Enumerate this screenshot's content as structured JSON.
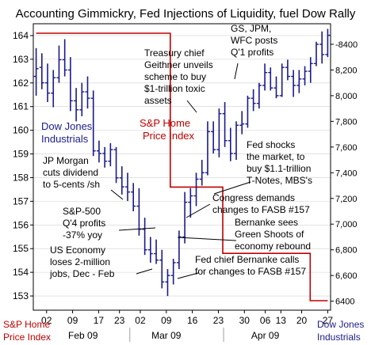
{
  "chart_data": {
    "type": "line",
    "title": "Accounting Gimmickry, Fed Injections of Liquidity, fuel Dow Rally",
    "x_ticks": [
      "02",
      "09",
      "17",
      "23",
      "02",
      "09",
      "16",
      "23",
      "30",
      "06",
      "13",
      "20",
      "27"
    ],
    "month_labels": [
      "Feb 09",
      "Mar 09",
      "Apr 09"
    ],
    "left_axis": {
      "label": [
        "S&P Home",
        "Price Index"
      ],
      "ticks": [
        153,
        154,
        155,
        156,
        157,
        158,
        159,
        160,
        161,
        162,
        163,
        164
      ],
      "range": [
        152.4,
        164.5
      ]
    },
    "right_axis": {
      "label": [
        "Dow Jones",
        "Industrials"
      ],
      "ticks": [
        6400,
        6600,
        6800,
        7000,
        7200,
        7400,
        7600,
        7800,
        8000,
        8200,
        8400
      ],
      "tick_labels": [
        "6400",
        "6,600",
        "6,800",
        "7,000",
        "7,200",
        "7,400",
        "7,600",
        "7,800",
        "8,000",
        "8,200",
        "-8400"
      ],
      "range": [
        6330,
        8560
      ]
    },
    "series": [
      {
        "name": "Dow Jones Industrials",
        "type": "ohlc",
        "color": "#1a1a8c",
        "bars": [
          [
            8150,
            8370,
            8000,
            8210
          ],
          [
            8220,
            8330,
            8050,
            8100
          ],
          [
            8100,
            8250,
            7950,
            8020
          ],
          [
            8020,
            8200,
            7910,
            8140
          ],
          [
            8140,
            8390,
            8100,
            8280
          ],
          [
            8280,
            8440,
            8150,
            8200
          ],
          [
            8200,
            8300,
            7880,
            7960
          ],
          [
            7960,
            8060,
            7800,
            7890
          ],
          [
            7890,
            8100,
            7840,
            8030
          ],
          [
            8030,
            8150,
            7900,
            7980
          ],
          [
            7980,
            8040,
            7530,
            7570
          ],
          [
            7570,
            7650,
            7480,
            7550
          ],
          [
            7550,
            7600,
            7440,
            7490
          ],
          [
            7490,
            7630,
            7450,
            7580
          ],
          [
            7580,
            7600,
            7320,
            7360
          ],
          [
            7360,
            7450,
            7230,
            7290
          ],
          [
            7290,
            7400,
            7180,
            7250
          ],
          [
            7250,
            7320,
            7100,
            7140
          ],
          [
            7140,
            7280,
            6910,
            6960
          ],
          [
            6960,
            7050,
            6760,
            6800
          ],
          [
            6800,
            6900,
            6700,
            6770
          ],
          [
            6770,
            6880,
            6690,
            6720
          ],
          [
            6720,
            6800,
            6500,
            6550
          ],
          [
            6550,
            6650,
            6440,
            6600
          ],
          [
            6600,
            6730,
            6530,
            6700
          ],
          [
            6700,
            6950,
            6650,
            6900
          ],
          [
            6900,
            7250,
            6850,
            7170
          ],
          [
            7170,
            7280,
            7050,
            7220
          ],
          [
            7220,
            7400,
            7140,
            7350
          ],
          [
            7350,
            7500,
            7300,
            7400
          ],
          [
            7400,
            7800,
            7380,
            7720
          ],
          [
            7720,
            7800,
            7550,
            7580
          ],
          [
            7580,
            7900,
            7520,
            7860
          ],
          [
            7860,
            7950,
            7600,
            7650
          ],
          [
            7650,
            7750,
            7490,
            7550
          ],
          [
            7550,
            7800,
            7500,
            7770
          ],
          [
            7770,
            7880,
            7700,
            7780
          ],
          [
            7780,
            8000,
            7750,
            7980
          ],
          [
            7980,
            8050,
            7880,
            7940
          ],
          [
            7940,
            8100,
            7900,
            8080
          ],
          [
            8080,
            8250,
            8040,
            8180
          ],
          [
            8180,
            8220,
            8040,
            8060
          ],
          [
            8060,
            8150,
            7980,
            8000
          ],
          [
            8000,
            8250,
            7990,
            8220
          ],
          [
            8220,
            8280,
            8120,
            8150
          ],
          [
            8150,
            8200,
            7990,
            8080
          ],
          [
            8080,
            8200,
            8020,
            8130
          ],
          [
            8130,
            8230,
            8080,
            8190
          ],
          [
            8190,
            8300,
            8100,
            8250
          ],
          [
            8250,
            8420,
            8230,
            8400
          ],
          [
            8400,
            8500,
            8250,
            8320
          ],
          [
            8320,
            8520,
            8300,
            8470
          ]
        ]
      },
      {
        "name": "S&P Home Price Index",
        "type": "step",
        "color": "#c00000",
        "x": [
          0,
          23,
          23,
          32,
          32,
          47,
          47,
          50
        ],
        "values": [
          164.1,
          164.1,
          157.6,
          157.6,
          154.8,
          154.8,
          152.8,
          152.8
        ]
      }
    ]
  },
  "labels": {
    "dow_legend": [
      "Dow Jones",
      "Industrials"
    ],
    "sp_legend": [
      "S&P Home",
      "Price Index"
    ]
  },
  "annotations": [
    {
      "lines": [
        "GS, JPM,",
        "WFC posts",
        "Q'1 profits"
      ]
    },
    {
      "lines": [
        "Treasury chief",
        "Geithner unveils",
        "scheme to buy",
        "$1-trillion toxic",
        "assets"
      ]
    },
    {
      "lines": [
        "Fed shocks",
        "the market, to",
        "buy $1.1-trillion",
        "T-Notes, MBS's"
      ]
    },
    {
      "lines": [
        "JP Morgan",
        "cuts dividend",
        "to 5-cents /sh"
      ]
    },
    {
      "lines": [
        "Congress demands",
        "changes to FASB #157"
      ]
    },
    {
      "lines": [
        "S&P-500",
        "Q'4 profits",
        "-37% yoy"
      ]
    },
    {
      "lines": [
        "Bernanke sees",
        "Green Shoots of",
        "economy rebound"
      ]
    },
    {
      "lines": [
        "US Economy",
        "loses 2-million",
        "jobs, Dec - Feb"
      ]
    },
    {
      "lines": [
        "Fed chief Bernanke calls",
        "for changes to FASB #157"
      ]
    }
  ],
  "colors": {
    "dow": "#1a1a8c",
    "sp": "#c00000",
    "frame": "#000000",
    "grid": "#d0d0d0"
  }
}
